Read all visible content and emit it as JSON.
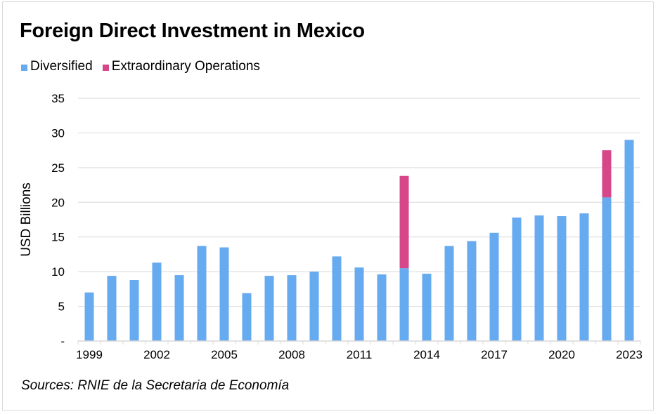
{
  "chart_data": {
    "type": "bar",
    "stacked": true,
    "title": "Foreign Direct Investment in Mexico",
    "xlabel": "",
    "ylabel": "USD Billions",
    "ylim": [
      0,
      35
    ],
    "yticks": [
      0,
      5,
      10,
      15,
      20,
      25,
      30,
      35
    ],
    "ytick_labels": [
      "-",
      "5",
      "10",
      "15",
      "20",
      "25",
      "30",
      "35"
    ],
    "grid": true,
    "legend_position": "top-left",
    "categories": [
      "1999",
      "2000",
      "2001",
      "2002",
      "2003",
      "2004",
      "2005",
      "2006",
      "2007",
      "2008",
      "2009",
      "2010",
      "2011",
      "2012",
      "2013",
      "2014",
      "2015",
      "2016",
      "2017",
      "2018",
      "2019",
      "2020",
      "2021",
      "2022",
      "2023"
    ],
    "xtick_labels_shown": [
      "1999",
      "2002",
      "2005",
      "2008",
      "2011",
      "2014",
      "2017",
      "2020",
      "2023"
    ],
    "series": [
      {
        "name": "Diversified",
        "color": "#66aaf0",
        "values": [
          7.0,
          9.4,
          8.8,
          11.3,
          9.5,
          13.7,
          13.5,
          6.9,
          9.4,
          9.5,
          10.0,
          12.2,
          10.6,
          9.6,
          10.5,
          9.7,
          13.7,
          14.4,
          15.6,
          17.8,
          18.1,
          18.0,
          18.4,
          20.7,
          29.0
        ]
      },
      {
        "name": "Extraordinary Operations",
        "color": "#d6478a",
        "values": [
          0,
          0,
          0,
          0,
          0,
          0,
          0,
          0,
          0,
          0,
          0,
          0,
          0,
          0,
          13.3,
          0,
          0,
          0,
          0,
          0,
          0,
          0,
          0,
          6.8,
          0
        ]
      }
    ],
    "source": "Sources: RNIE de la Secretaria de Economía"
  }
}
